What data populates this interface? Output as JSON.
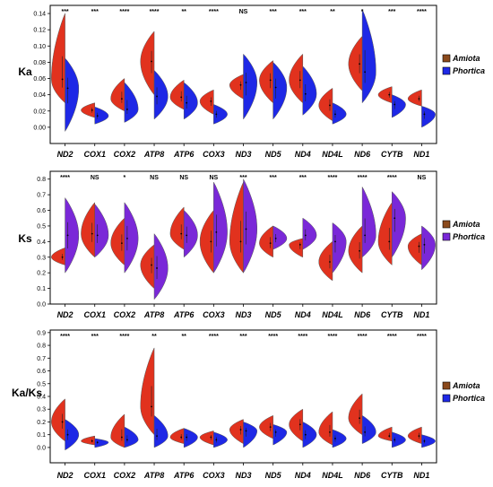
{
  "chart_data": [
    {
      "type": "violin",
      "ylabel": "Ka",
      "ylim": [
        -0.02,
        0.15
      ],
      "yticks": [
        "0.00",
        "0.02",
        "0.04",
        "0.06",
        "0.08",
        "0.10",
        "0.12",
        "0.14"
      ],
      "categories": [
        "ND2",
        "COX1",
        "COX2",
        "ATP8",
        "ATP6",
        "COX3",
        "ND3",
        "ND5",
        "ND4",
        "ND4L",
        "ND6",
        "CYTB",
        "ND1"
      ],
      "significance": [
        "***",
        "***",
        "****",
        "****",
        "**",
        "****",
        "NS",
        "***",
        "***",
        "**",
        "*",
        "***",
        "****"
      ],
      "legend": [
        "Amiota",
        "Phortica"
      ],
      "colors": {
        "Amiota": "#e1321e",
        "Phortica": "#1e28e6"
      },
      "series": [
        {
          "name": "Amiota",
          "median": [
            0.059,
            0.021,
            0.035,
            0.081,
            0.037,
            0.032,
            0.052,
            0.058,
            0.058,
            0.027,
            0.078,
            0.04,
            0.035
          ],
          "min": [
            0.03,
            0.012,
            0.02,
            0.04,
            0.022,
            0.016,
            0.035,
            0.03,
            0.03,
            0.008,
            0.045,
            0.03,
            0.026
          ],
          "max": [
            0.14,
            0.03,
            0.06,
            0.118,
            0.058,
            0.046,
            0.065,
            0.082,
            0.09,
            0.048,
            0.112,
            0.05,
            0.046
          ]
        },
        {
          "name": "Phortica",
          "median": [
            0.048,
            0.014,
            0.022,
            0.038,
            0.03,
            0.016,
            0.055,
            0.049,
            0.041,
            0.016,
            0.068,
            0.028,
            0.016
          ],
          "min": [
            -0.005,
            0.004,
            0.006,
            0.01,
            0.01,
            0.004,
            0.01,
            0.01,
            0.015,
            0.004,
            0.03,
            0.012,
            0.0
          ],
          "max": [
            0.085,
            0.025,
            0.055,
            0.07,
            0.055,
            0.028,
            0.09,
            0.08,
            0.075,
            0.03,
            0.145,
            0.04,
            0.026
          ]
        }
      ]
    },
    {
      "type": "violin",
      "ylabel": "Ks",
      "ylim": [
        0.0,
        0.85
      ],
      "yticks": [
        "0.0",
        "0.1",
        "0.2",
        "0.3",
        "0.4",
        "0.5",
        "0.6",
        "0.7",
        "0.8"
      ],
      "categories": [
        "ND2",
        "COX1",
        "COX2",
        "ATP8",
        "ATP6",
        "COX3",
        "ND3",
        "ND5",
        "ND4",
        "ND4L",
        "ND6",
        "CYTB",
        "ND1"
      ],
      "significance": [
        "****",
        "NS",
        "*",
        "NS",
        "NS",
        "NS",
        "***",
        "***",
        "***",
        "****",
        "****",
        "****",
        "NS"
      ],
      "legend": [
        "Amiota",
        "Phortica"
      ],
      "colors": {
        "Amiota": "#e1321e",
        "Phortica": "#7a28d8"
      },
      "series": [
        {
          "name": "Amiota",
          "median": [
            0.3,
            0.45,
            0.39,
            0.25,
            0.45,
            0.4,
            0.4,
            0.39,
            0.38,
            0.27,
            0.34,
            0.4,
            0.37
          ],
          "min": [
            0.25,
            0.3,
            0.25,
            0.1,
            0.35,
            0.2,
            0.2,
            0.3,
            0.3,
            0.15,
            0.2,
            0.25,
            0.25
          ],
          "max": [
            0.36,
            0.65,
            0.55,
            0.38,
            0.62,
            0.6,
            0.78,
            0.5,
            0.42,
            0.4,
            0.5,
            0.65,
            0.45
          ]
        },
        {
          "name": "Phortica",
          "median": [
            0.44,
            0.44,
            0.42,
            0.23,
            0.44,
            0.46,
            0.48,
            0.42,
            0.44,
            0.4,
            0.44,
            0.55,
            0.38
          ],
          "min": [
            0.2,
            0.3,
            0.2,
            0.03,
            0.3,
            0.2,
            0.2,
            0.35,
            0.35,
            0.2,
            0.3,
            0.3,
            0.22
          ],
          "max": [
            0.68,
            0.64,
            0.65,
            0.45,
            0.6,
            0.78,
            0.8,
            0.5,
            0.55,
            0.52,
            0.75,
            0.72,
            0.5
          ]
        }
      ]
    },
    {
      "type": "violin",
      "ylabel": "Ka/Ks",
      "ylim": [
        -0.12,
        0.92
      ],
      "yticks": [
        "0.0",
        "0.1",
        "0.2",
        "0.3",
        "0.4",
        "0.5",
        "0.6",
        "0.7",
        "0.8",
        "0.9"
      ],
      "categories": [
        "ND2",
        "COX1",
        "COX2",
        "ATP8",
        "ATP6",
        "COX3",
        "ND3",
        "ND5",
        "ND4",
        "ND4L",
        "ND6",
        "CYTB",
        "ND1"
      ],
      "significance": [
        "****",
        "***",
        "****",
        "**",
        "**",
        "****",
        "***",
        "****",
        "****",
        "****",
        "****",
        "****",
        "****"
      ],
      "legend": [
        "Amiota",
        "Phortica"
      ],
      "colors": {
        "Amiota": "#e1321e",
        "Phortica": "#1e28e6"
      },
      "series": [
        {
          "name": "Amiota",
          "median": [
            0.2,
            0.05,
            0.08,
            0.32,
            0.08,
            0.08,
            0.14,
            0.16,
            0.18,
            0.12,
            0.23,
            0.09,
            0.09
          ],
          "min": [
            0.05,
            0.02,
            0.0,
            0.1,
            0.03,
            0.02,
            0.03,
            0.07,
            0.05,
            0.02,
            0.1,
            0.05,
            0.03
          ],
          "max": [
            0.38,
            0.09,
            0.26,
            0.78,
            0.15,
            0.13,
            0.22,
            0.25,
            0.3,
            0.28,
            0.42,
            0.16,
            0.16
          ]
        },
        {
          "name": "Phortica",
          "median": [
            0.1,
            0.04,
            0.06,
            0.09,
            0.08,
            0.06,
            0.13,
            0.12,
            0.1,
            0.07,
            0.12,
            0.06,
            0.05
          ],
          "min": [
            -0.02,
            0.0,
            0.0,
            0.0,
            0.0,
            0.0,
            0.0,
            0.02,
            0.0,
            0.0,
            0.03,
            0.0,
            0.0
          ],
          "max": [
            0.22,
            0.07,
            0.16,
            0.25,
            0.15,
            0.12,
            0.2,
            0.18,
            0.2,
            0.14,
            0.25,
            0.12,
            0.1
          ]
        }
      ]
    }
  ]
}
